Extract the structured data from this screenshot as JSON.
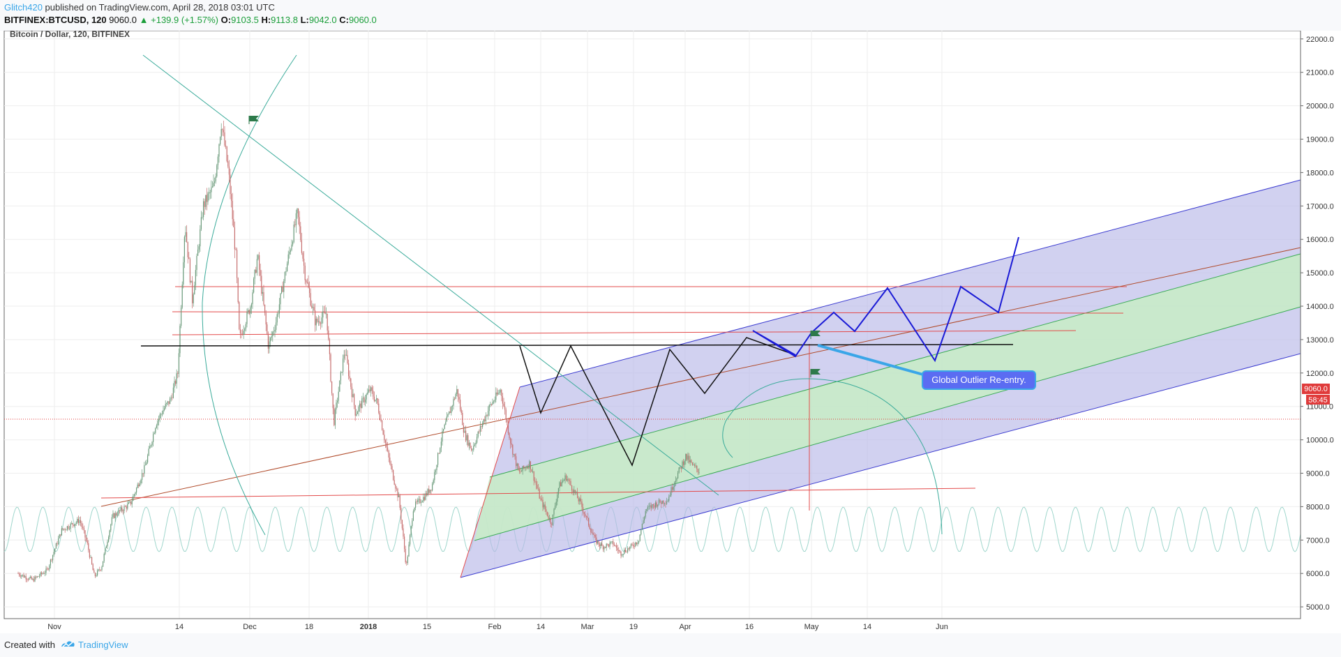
{
  "header": {
    "author": "Glitch420",
    "published": "published on TradingView.com, April 28, 2018 03:01 UTC",
    "symbol": "BITFINEX:BTCUSD, 120",
    "last": "9060.0",
    "change": "▲ +139.9 (+1.57%)",
    "o_label": "O:",
    "o_value": "9103.5",
    "h_label": "H:",
    "h_value": "9113.8",
    "l_label": "L:",
    "l_value": "9042.0",
    "c_label": "C:",
    "c_value": "9060.0"
  },
  "footer": {
    "created_with": "Created with",
    "brand": "TradingView"
  },
  "colors": {
    "up": "#1b9e3a",
    "candle_up": "#6a9a7a",
    "candle_down": "#c66d6d",
    "channel_outer": "#b8b8e8",
    "channel_inner": "#c8ebc8",
    "channel_line": "#3a3ad0",
    "red_line": "#e34a4a",
    "teal": "#3aab9a",
    "sine": "#9fd6cc",
    "black": "#111111",
    "blue_path": "#1a1ad6",
    "callout": "#5b6cf2",
    "price_tag": "#e03b3b"
  },
  "chart_data": {
    "type": "candlestick",
    "title": "Bitcoin / Dollar, 120, BITFINEX",
    "xlabel": "",
    "ylabel": "",
    "ylim": [
      4850,
      22600
    ],
    "grid": true,
    "y_ticks": [
      "22000.0",
      "21000.0",
      "20000.0",
      "19000.0",
      "18000.0",
      "17000.0",
      "16000.0",
      "15000.0",
      "14000.0",
      "13000.0",
      "12000.0",
      "11000.0",
      "10000.0",
      "9000.0",
      "8000.0",
      "7000.0",
      "6000.0",
      "5000.0"
    ],
    "x_ticks": [
      {
        "label": "Nov",
        "bold": false
      },
      {
        "label": "14",
        "bold": false
      },
      {
        "label": "Dec",
        "bold": false
      },
      {
        "label": "18",
        "bold": false
      },
      {
        "label": "2018",
        "bold": true
      },
      {
        "label": "15",
        "bold": false
      },
      {
        "label": "Feb",
        "bold": false
      },
      {
        "label": "14",
        "bold": false
      },
      {
        "label": "Mar",
        "bold": false
      },
      {
        "label": "19",
        "bold": false
      },
      {
        "label": "Apr",
        "bold": false
      },
      {
        "label": "16",
        "bold": false
      },
      {
        "label": "May",
        "bold": false
      },
      {
        "label": "14",
        "bold": false
      },
      {
        "label": "Jun",
        "bold": false
      }
    ],
    "series": [
      {
        "name": "BTCUSD",
        "points": [
          [
            "2017-10-22",
            6000
          ],
          [
            "2017-10-26",
            5800
          ],
          [
            "2017-10-30",
            6100
          ],
          [
            "2017-11-03",
            7300
          ],
          [
            "2017-11-08",
            7600
          ],
          [
            "2017-11-10",
            6900
          ],
          [
            "2017-11-12",
            5900
          ],
          [
            "2017-11-14",
            6200
          ],
          [
            "2017-11-17",
            7700
          ],
          [
            "2017-11-22",
            8100
          ],
          [
            "2017-11-26",
            9200
          ],
          [
            "2017-11-29",
            10500
          ],
          [
            "2017-12-01",
            10900
          ],
          [
            "2017-12-03",
            11200
          ],
          [
            "2017-12-05",
            12000
          ],
          [
            "2017-12-07",
            16500
          ],
          [
            "2017-12-09",
            14200
          ],
          [
            "2017-12-12",
            17000
          ],
          [
            "2017-12-15",
            17600
          ],
          [
            "2017-12-17",
            19500
          ],
          [
            "2017-12-19",
            18000
          ],
          [
            "2017-12-21",
            15500
          ],
          [
            "2017-12-22",
            13000
          ],
          [
            "2017-12-25",
            14000
          ],
          [
            "2017-12-27",
            15500
          ],
          [
            "2017-12-30",
            12800
          ],
          [
            "2018-01-01",
            13500
          ],
          [
            "2018-01-04",
            15200
          ],
          [
            "2018-01-07",
            16800
          ],
          [
            "2018-01-09",
            15000
          ],
          [
            "2018-01-12",
            13500
          ],
          [
            "2018-01-15",
            13800
          ],
          [
            "2018-01-17",
            10500
          ],
          [
            "2018-01-20",
            12700
          ],
          [
            "2018-01-23",
            10800
          ],
          [
            "2018-01-27",
            11500
          ],
          [
            "2018-01-29",
            11100
          ],
          [
            "2018-02-01",
            9500
          ],
          [
            "2018-02-04",
            8200
          ],
          [
            "2018-02-06",
            6200
          ],
          [
            "2018-02-08",
            8000
          ],
          [
            "2018-02-11",
            8300
          ],
          [
            "2018-02-13",
            8600
          ],
          [
            "2018-02-16",
            10200
          ],
          [
            "2018-02-20",
            11500
          ],
          [
            "2018-02-22",
            10200
          ],
          [
            "2018-02-24",
            9700
          ],
          [
            "2018-02-27",
            10500
          ],
          [
            "2018-03-01",
            11000
          ],
          [
            "2018-03-04",
            11500
          ],
          [
            "2018-03-07",
            9800
          ],
          [
            "2018-03-09",
            9000
          ],
          [
            "2018-03-12",
            9300
          ],
          [
            "2018-03-15",
            8200
          ],
          [
            "2018-03-18",
            7500
          ],
          [
            "2018-03-20",
            8600
          ],
          [
            "2018-03-22",
            8900
          ],
          [
            "2018-03-26",
            8100
          ],
          [
            "2018-03-30",
            7000
          ],
          [
            "2018-04-01",
            6800
          ],
          [
            "2018-04-04",
            6900
          ],
          [
            "2018-04-06",
            6600
          ],
          [
            "2018-04-09",
            6800
          ],
          [
            "2018-04-11",
            7000
          ],
          [
            "2018-04-13",
            7900
          ],
          [
            "2018-04-16",
            8100
          ],
          [
            "2018-04-19",
            8200
          ],
          [
            "2018-04-21",
            8800
          ],
          [
            "2018-04-24",
            9500
          ],
          [
            "2018-04-26",
            9200
          ],
          [
            "2018-04-28",
            9060
          ]
        ]
      }
    ],
    "price_tag": {
      "value": "9060.0",
      "countdown": "58:45"
    },
    "annotations": [
      {
        "text": "Global Outlier Re-entry."
      }
    ]
  }
}
